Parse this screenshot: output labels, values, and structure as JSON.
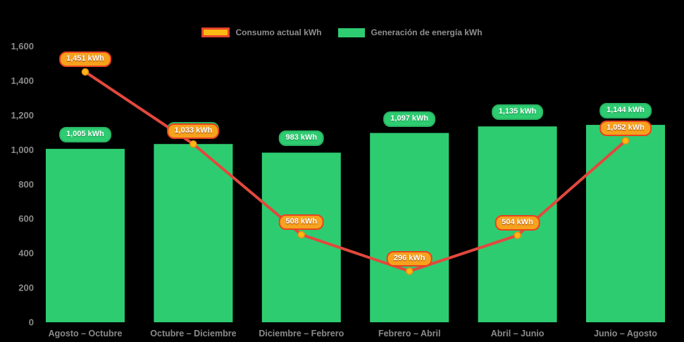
{
  "background_color": "#000000",
  "chart_data": {
    "type": "combo",
    "title": "",
    "categories": [
      "Agosto – Octubre",
      "Octubre – Diciembre",
      "Diciembre – Febrero",
      "Febrero – Abril",
      "Abril – Junio",
      "Junio – Agosto"
    ],
    "series": [
      {
        "name": "Consumo actual kWh",
        "type": "line",
        "values": [
          1451,
          1033,
          508,
          296,
          504,
          1052
        ],
        "line_color": "#e2483d",
        "marker_fill": "#fdb813",
        "marker_border": "#ef8e12",
        "label_bg": "#f6a21d",
        "label_border": "#e8431f"
      },
      {
        "name": "Generación de energía kWh",
        "type": "bar",
        "values": [
          1005,
          1033,
          983,
          1097,
          1135,
          1144
        ],
        "bar_color": "#2ecc71",
        "label_bg": "#2ecc71",
        "label_border": "#29b463"
      }
    ],
    "value_suffix": " kWh",
    "data_labels": {
      "line": [
        "1,451 kWh",
        "1,033 kWh",
        "508 kWh",
        "296 kWh",
        "504 kWh",
        "1,052 kWh"
      ],
      "bar": [
        "1,005 kWh",
        "1,033 kWh",
        "983 kWh",
        "1,097 kWh",
        "1,135 kWh",
        "1,144 kWh"
      ]
    },
    "yaxis": {
      "min": 0,
      "max": 1600,
      "step": 200,
      "tick_labels": [
        "0",
        "200",
        "400",
        "600",
        "800",
        "1,000",
        "1,200",
        "1,400",
        "1,600"
      ]
    },
    "grid": false,
    "legend_position": "top",
    "axis_text_color": "#8a8a8a"
  }
}
